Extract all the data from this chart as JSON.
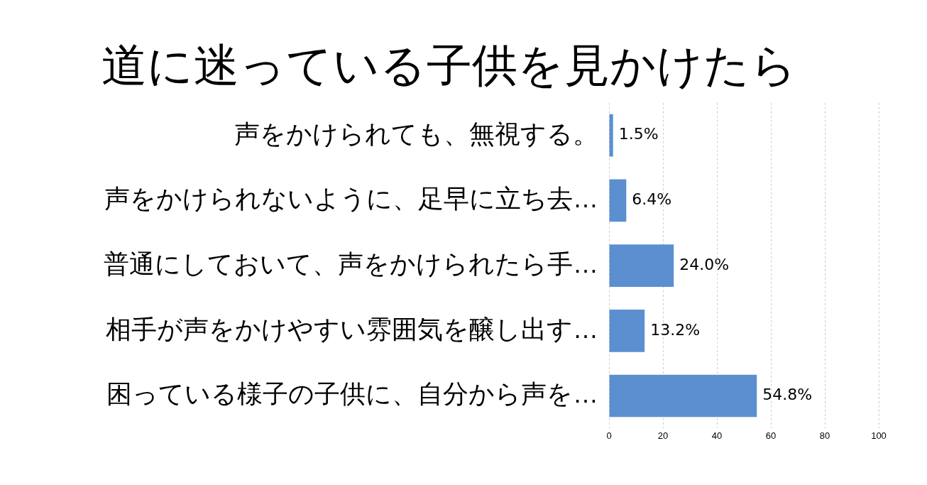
{
  "chart_data": {
    "type": "bar",
    "title": "道に迷っている子供を見かけたら",
    "orientation": "horizontal",
    "categories": [
      "声をかけられても、無視する。",
      "声をかけられないように、足早に立ち去…",
      "普通にしておいて、声をかけられたら手…",
      "相手が声をかけやすい雰囲気を醸し出す…",
      "困っている様子の子供に、自分から声を…"
    ],
    "values": [
      1.5,
      6.4,
      24.0,
      13.2,
      54.8
    ],
    "value_labels": [
      "1.5%",
      "6.4%",
      "24.0%",
      "13.2%",
      "54.8%"
    ],
    "color": "#5b8fd0",
    "xlim": [
      0,
      100
    ],
    "xticks": [
      0,
      20,
      40,
      60,
      80,
      100
    ],
    "grid": "x"
  }
}
